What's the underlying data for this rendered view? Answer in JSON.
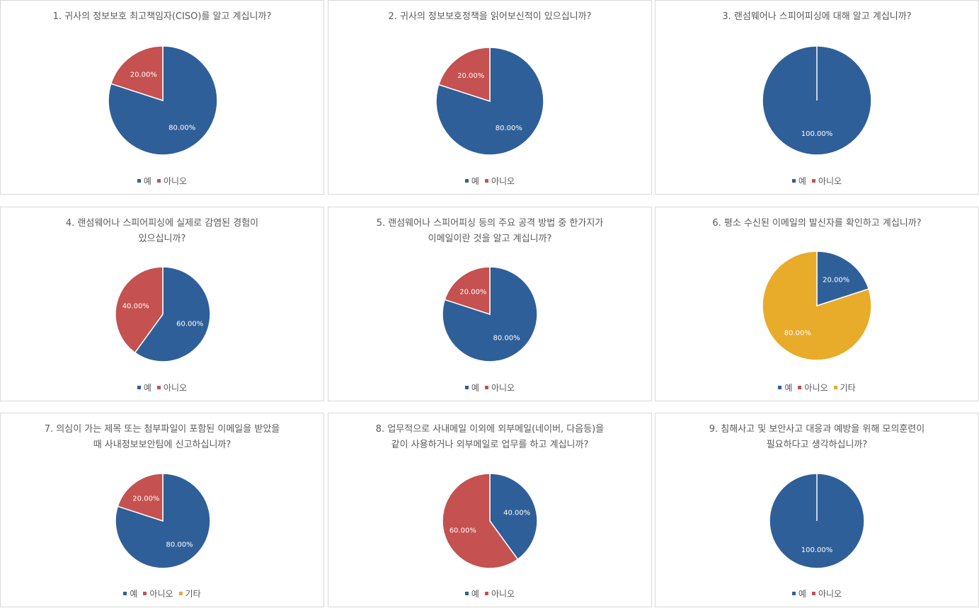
{
  "colors": {
    "yes": "#2f5f98",
    "no": "#c55150",
    "other": "#e8ac2a"
  },
  "chart_data": [
    {
      "type": "pie",
      "title_lines": [
        "1. 귀사의 정보보호 최고책임자(CISO)를 알고 계십니까?"
      ],
      "legend": [
        "예",
        "아니오"
      ],
      "slices": [
        {
          "name": "예",
          "value": 80,
          "label": "80.00%",
          "color": "#2f5f98"
        },
        {
          "name": "아니오",
          "value": 20,
          "label": "20.00%",
          "color": "#c55150"
        }
      ]
    },
    {
      "type": "pie",
      "title_lines": [
        "2. 귀사의 정보보호정책을 읽어보신적이 있으십니까?"
      ],
      "legend": [
        "예",
        "아니오"
      ],
      "slices": [
        {
          "name": "예",
          "value": 80,
          "label": "80.00%",
          "color": "#2f5f98"
        },
        {
          "name": "아니오",
          "value": 20,
          "label": "20.00%",
          "color": "#c55150"
        }
      ]
    },
    {
      "type": "pie",
      "title_lines": [
        "3. 랜섬웨어나 스피어피싱에 대해 알고 계십니까?"
      ],
      "legend": [
        "예",
        "아니오"
      ],
      "slices": [
        {
          "name": "예",
          "value": 100,
          "label": "100.00%",
          "color": "#2f5f98"
        },
        {
          "name": "아니오",
          "value": 0,
          "label": "",
          "color": "#c55150"
        }
      ]
    },
    {
      "type": "pie",
      "title_lines": [
        "4. 랜섬웨어나 스피어피싱에 실제로 감염된 경험이",
        "있으십니까?"
      ],
      "legend": [
        "예",
        "아니오"
      ],
      "slices": [
        {
          "name": "예",
          "value": 60,
          "label": "60.00%",
          "color": "#2f5f98"
        },
        {
          "name": "아니오",
          "value": 40,
          "label": "40.00%",
          "color": "#c55150"
        }
      ]
    },
    {
      "type": "pie",
      "title_lines": [
        "5. 랜섬웨어나 스피어피싱 등의 주요 공격 방법 중 한가지가",
        "이메일이란 것을 알고 계십니까?"
      ],
      "legend": [
        "예",
        "아니오"
      ],
      "slices": [
        {
          "name": "예",
          "value": 80,
          "label": "80.00%",
          "color": "#2f5f98"
        },
        {
          "name": "아니오",
          "value": 20,
          "label": "20.00%",
          "color": "#c55150"
        }
      ]
    },
    {
      "type": "pie",
      "title_lines": [
        "6. 평소 수신된 이메일의 발신자를 확인하고 계십니까?"
      ],
      "legend": [
        "예",
        "아니오",
        "기타"
      ],
      "slices": [
        {
          "name": "예",
          "value": 20,
          "label": "20.00%",
          "color": "#2f5f98"
        },
        {
          "name": "아니오",
          "value": 0,
          "label": "",
          "color": "#c55150"
        },
        {
          "name": "기타",
          "value": 80,
          "label": "80.00%",
          "color": "#e8ac2a"
        }
      ]
    },
    {
      "type": "pie",
      "title_lines": [
        "7. 의심이 가는 제목 또는 첨부파일이 포함된 이메일을 받았을",
        "때 사내정보보안팀에 신고하십니까?"
      ],
      "legend": [
        "예",
        "아니오",
        "기타"
      ],
      "slices": [
        {
          "name": "예",
          "value": 80,
          "label": "80.00%",
          "color": "#2f5f98"
        },
        {
          "name": "아니오",
          "value": 20,
          "label": "20.00%",
          "color": "#c55150"
        },
        {
          "name": "기타",
          "value": 0,
          "label": "",
          "color": "#e8ac2a"
        }
      ]
    },
    {
      "type": "pie",
      "title_lines": [
        "8. 업무적으로 사내메일 이외에 외부메일(네이버, 다음등)을",
        "같이 사용하거나 외부메일로 업무를 하고 계십니까?"
      ],
      "legend": [
        "예",
        "아니오"
      ],
      "slices": [
        {
          "name": "예",
          "value": 40,
          "label": "40.00%",
          "color": "#2f5f98"
        },
        {
          "name": "아니오",
          "value": 60,
          "label": "60.00%",
          "color": "#c55150"
        }
      ]
    },
    {
      "type": "pie",
      "title_lines": [
        "9. 침해사고 및 보안사고 대응과 예방을 위해 모의훈련이",
        "필요하다고 생각하십니까?"
      ],
      "legend": [
        "예",
        "아니오"
      ],
      "slices": [
        {
          "name": "예",
          "value": 100,
          "label": "100.00%",
          "color": "#2f5f98"
        },
        {
          "name": "아니오",
          "value": 0,
          "label": "",
          "color": "#c55150"
        }
      ]
    }
  ]
}
